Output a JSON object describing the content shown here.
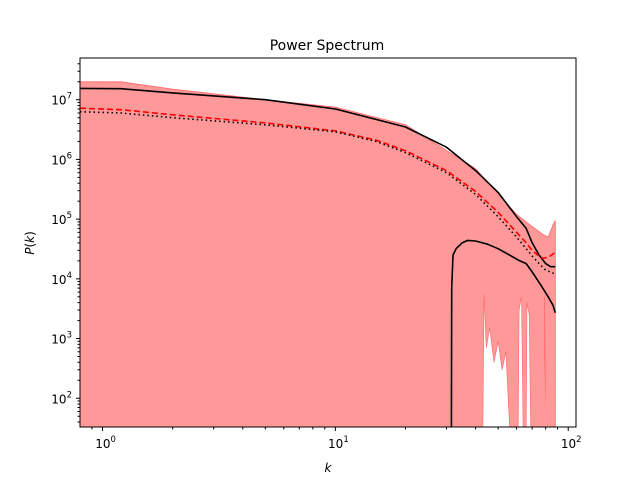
{
  "chart_data": {
    "type": "line",
    "title": "Power Spectrum",
    "xlabel": "k",
    "ylabel": "P(k)",
    "xscale": "log",
    "yscale": "log",
    "xlim": [
      0.8,
      108
    ],
    "ylim": [
      33,
      50000000
    ],
    "x_ticks": [
      {
        "value": 1,
        "base": "10",
        "exp": "0"
      },
      {
        "value": 10,
        "base": "10",
        "exp": "1"
      },
      {
        "value": 100,
        "base": "10",
        "exp": "2"
      }
    ],
    "y_ticks": [
      {
        "value": 100,
        "base": "10",
        "exp": "2"
      },
      {
        "value": 1000,
        "base": "10",
        "exp": "3"
      },
      {
        "value": 10000,
        "base": "10",
        "exp": "4"
      },
      {
        "value": 100000,
        "base": "10",
        "exp": "5"
      },
      {
        "value": 1000000,
        "base": "10",
        "exp": "6"
      },
      {
        "value": 10000000,
        "base": "10",
        "exp": "7"
      }
    ],
    "grid": false,
    "legend": "none",
    "colors": {
      "band": "#ff9999",
      "band_edge": "#ff6666",
      "red": "#ff0000",
      "black": "#000000"
    },
    "band": {
      "upper": [
        [
          0.8,
          20000000
        ],
        [
          1.2,
          20000000
        ],
        [
          2,
          15000000
        ],
        [
          5,
          10000000
        ],
        [
          10,
          7500000
        ],
        [
          20,
          3800000
        ],
        [
          40,
          700000
        ],
        [
          60,
          120000
        ],
        [
          70,
          75000
        ],
        [
          78,
          55000
        ],
        [
          82,
          50000
        ],
        [
          86,
          80000
        ],
        [
          88,
          95000
        ]
      ],
      "lower": [
        33,
        33,
        33,
        33,
        33,
        33,
        33,
        33,
        33,
        33,
        33,
        33,
        33
      ],
      "holes": [
        [
          [
            43,
            33
          ],
          [
            43.5,
            5500
          ],
          [
            44.5,
            700
          ],
          [
            46,
            1500
          ],
          [
            48,
            400
          ],
          [
            50,
            900
          ],
          [
            52,
            300
          ],
          [
            54,
            600
          ],
          [
            56,
            33
          ]
        ],
        [
          [
            61,
            33
          ],
          [
            61.5,
            3000
          ],
          [
            63,
            5000
          ],
          [
            64,
            33
          ]
        ],
        [
          [
            66,
            33
          ],
          [
            66.5,
            4000
          ],
          [
            68,
            2500
          ],
          [
            69,
            33
          ]
        ],
        [
          [
            79,
            33
          ],
          [
            79.2,
            5000
          ],
          [
            80,
            33
          ]
        ]
      ]
    },
    "series": [
      {
        "style": "solid-black",
        "values": [
          [
            0.8,
            15500000
          ],
          [
            1.2,
            15300000
          ],
          [
            2,
            13000000
          ],
          [
            5,
            10000000
          ],
          [
            10,
            7000000
          ],
          [
            20,
            3500000
          ],
          [
            30,
            1600000
          ],
          [
            40,
            650000
          ],
          [
            50,
            280000
          ],
          [
            60,
            110000
          ],
          [
            66,
            70000
          ],
          [
            70,
            40000
          ],
          [
            75,
            25000
          ],
          [
            80,
            18000
          ],
          [
            84,
            16000
          ],
          [
            88,
            16000
          ]
        ]
      },
      {
        "style": "dashed-red",
        "values": [
          [
            0.8,
            7200000
          ],
          [
            1.2,
            6800000
          ],
          [
            2,
            5600000
          ],
          [
            5,
            4100000
          ],
          [
            10,
            3000000
          ],
          [
            15,
            2100000
          ],
          [
            20,
            1400000
          ],
          [
            30,
            650000
          ],
          [
            40,
            290000
          ],
          [
            50,
            130000
          ],
          [
            60,
            60000
          ],
          [
            66,
            40000
          ],
          [
            70,
            30000
          ],
          [
            74,
            25000
          ],
          [
            78,
            22000
          ],
          [
            82,
            23000
          ],
          [
            86,
            26000
          ],
          [
            88,
            28000
          ]
        ]
      },
      {
        "style": "dotted-black",
        "values": [
          [
            0.8,
            6300000
          ],
          [
            1.2,
            6000000
          ],
          [
            2,
            5000000
          ],
          [
            5,
            3800000
          ],
          [
            10,
            2900000
          ],
          [
            15,
            2000000
          ],
          [
            20,
            1300000
          ],
          [
            30,
            600000
          ],
          [
            40,
            260000
          ],
          [
            50,
            110000
          ],
          [
            60,
            50000
          ],
          [
            66,
            32000
          ],
          [
            70,
            24000
          ],
          [
            75,
            18000
          ],
          [
            80,
            14000
          ],
          [
            86,
            12500
          ],
          [
            88,
            12000
          ]
        ]
      },
      {
        "style": "solid-black",
        "values": [
          [
            31.5,
            33
          ],
          [
            31.6,
            7000
          ],
          [
            32,
            25000
          ],
          [
            33,
            32000
          ],
          [
            35,
            40000
          ],
          [
            37,
            44000
          ],
          [
            40,
            43000
          ],
          [
            45,
            38000
          ],
          [
            50,
            32000
          ],
          [
            55,
            26000
          ],
          [
            62,
            20000
          ],
          [
            66,
            18000
          ],
          [
            70,
            13000
          ],
          [
            76,
            8000
          ],
          [
            82,
            5000
          ],
          [
            86,
            3600
          ],
          [
            88,
            2700
          ]
        ]
      }
    ]
  }
}
